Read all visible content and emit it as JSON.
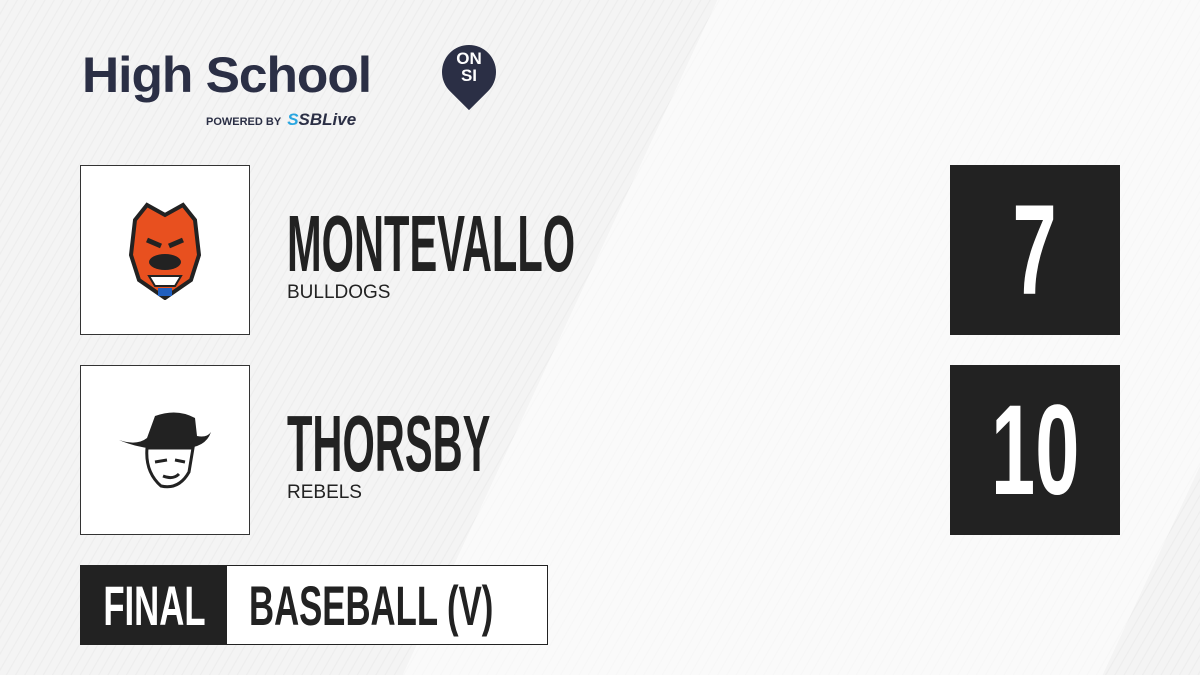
{
  "brand": {
    "title": "High School",
    "badge_top": "ON",
    "badge_bottom": "SI",
    "powered_by": "POWERED BY",
    "partner_a": "S",
    "partner_b": "SBLive"
  },
  "teams": [
    {
      "name": "MONTEVALLO",
      "mascot": "BULLDOGS",
      "score": "7",
      "logo_icon": "bulldog-logo",
      "accent": "#e8501f"
    },
    {
      "name": "THORSBY",
      "mascot": "REBELS",
      "score": "10",
      "logo_icon": "rebel-logo",
      "accent": "#222222"
    }
  ],
  "status": "FINAL",
  "sport": "BASEBALL (V)"
}
